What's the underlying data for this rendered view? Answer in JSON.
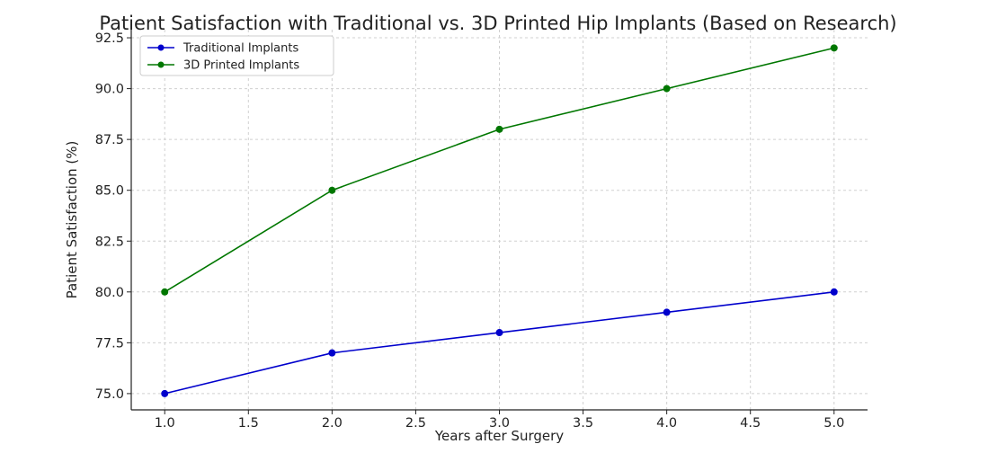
{
  "chart_data": {
    "type": "line",
    "title": "Patient Satisfaction with Traditional vs. 3D Printed Hip Implants (Based on Research)",
    "xlabel": "Years after Surgery",
    "ylabel": "Patient Satisfaction (%)",
    "x": [
      1,
      2,
      3,
      4,
      5
    ],
    "xlim": [
      0.8,
      5.2
    ],
    "ylim": [
      74.2,
      92.9
    ],
    "xticks": [
      "1.0",
      "1.5",
      "2.0",
      "2.5",
      "3.0",
      "3.5",
      "4.0",
      "4.5",
      "5.0"
    ],
    "yticks": [
      "75.0",
      "77.5",
      "80.0",
      "82.5",
      "85.0",
      "87.5",
      "90.0",
      "92.5"
    ],
    "grid": true,
    "legend_position": "top-left",
    "series": [
      {
        "name": "Traditional Implants",
        "color": "#0000cc",
        "values": [
          75,
          77,
          78,
          79,
          80
        ]
      },
      {
        "name": "3D Printed Implants",
        "color": "#007700",
        "values": [
          80,
          85,
          88,
          90,
          92
        ]
      }
    ]
  }
}
